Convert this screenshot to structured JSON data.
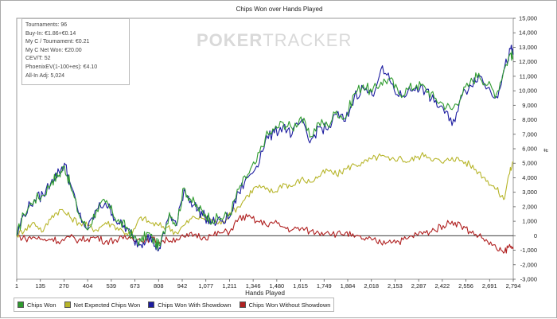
{
  "chart_data": {
    "type": "line",
    "title": "Chips Won over Hands Played",
    "xlabel": "Hands Played",
    "ylabel": "",
    "y_axis_unit": "#",
    "xlim": [
      1,
      2794
    ],
    "ylim": [
      -3000,
      15000
    ],
    "x_ticks": [
      "1",
      "135",
      "270",
      "404",
      "539",
      "673",
      "808",
      "942",
      "1,077",
      "1,211",
      "1,346",
      "1,480",
      "1,615",
      "1,749",
      "1,884",
      "2,018",
      "2,153",
      "2,287",
      "2,422",
      "2,556",
      "2,691",
      "2,794"
    ],
    "y_ticks": [
      "-3,000",
      "-2,000",
      "-1,000",
      "0",
      "1,000",
      "2,000",
      "3,000",
      "4,000",
      "5,000",
      "6,000",
      "7,000",
      "8,000",
      "9,000",
      "10,000",
      "11,000",
      "12,000",
      "13,000",
      "14,000",
      "15,000"
    ],
    "y_tick_values": [
      -3000,
      -2000,
      -1000,
      0,
      1000,
      2000,
      3000,
      4000,
      5000,
      6000,
      7000,
      8000,
      9000,
      10000,
      11000,
      12000,
      13000,
      14000,
      15000
    ],
    "grid": false,
    "legend_position": "bottom",
    "series": [
      {
        "name": "Chips Won",
        "color": "#2e9b2e",
        "x": [
          1,
          40,
          100,
          150,
          200,
          240,
          270,
          300,
          350,
          400,
          450,
          500,
          540,
          580,
          620,
          660,
          700,
          740,
          780,
          808,
          860,
          900,
          942,
          980,
          1020,
          1060,
          1100,
          1150,
          1200,
          1250,
          1300,
          1350,
          1400,
          1450,
          1500,
          1550,
          1600,
          1650,
          1700,
          1750,
          1800,
          1850,
          1900,
          1950,
          2000,
          2050,
          2100,
          2150,
          2200,
          2250,
          2300,
          2350,
          2400,
          2450,
          2500,
          2550,
          2600,
          2650,
          2700,
          2740,
          2780,
          2794
        ],
        "y": [
          0,
          1500,
          2500,
          2800,
          3800,
          4200,
          4800,
          3600,
          1500,
          400,
          1800,
          2300,
          1600,
          900,
          600,
          -200,
          -400,
          200,
          -500,
          -700,
          1600,
          800,
          3300,
          2500,
          1900,
          1500,
          1100,
          1200,
          1500,
          3200,
          4200,
          5100,
          6800,
          7300,
          7800,
          7400,
          8200,
          6800,
          7800,
          7600,
          8600,
          8100,
          9800,
          10400,
          9900,
          10600,
          10800,
          9800,
          10100,
          10400,
          10200,
          9500,
          9100,
          8700,
          9700,
          10500,
          11200,
          10400,
          9800,
          11400,
          12600,
          12200
        ]
      },
      {
        "name": "Net Expected Chips Won",
        "color": "#b7b52a",
        "x": [
          1,
          50,
          100,
          150,
          200,
          250,
          300,
          350,
          400,
          450,
          500,
          550,
          600,
          650,
          700,
          750,
          800,
          850,
          900,
          950,
          1000,
          1050,
          1100,
          1150,
          1200,
          1250,
          1300,
          1350,
          1400,
          1450,
          1500,
          1550,
          1600,
          1650,
          1700,
          1750,
          1800,
          1850,
          1900,
          1950,
          2000,
          2050,
          2100,
          2150,
          2200,
          2250,
          2300,
          2350,
          2400,
          2450,
          2500,
          2550,
          2600,
          2650,
          2700,
          2740,
          2770,
          2794
        ],
        "y": [
          0,
          500,
          900,
          300,
          1400,
          1800,
          1300,
          900,
          700,
          400,
          900,
          700,
          300,
          100,
          1300,
          900,
          700,
          600,
          200,
          800,
          1300,
          1200,
          1100,
          800,
          1600,
          2000,
          2800,
          3400,
          3200,
          3000,
          3600,
          3400,
          3900,
          3700,
          4100,
          4500,
          4200,
          4600,
          4900,
          5000,
          5300,
          5500,
          5200,
          5400,
          5100,
          5400,
          5600,
          5300,
          5000,
          5400,
          5200,
          4900,
          4400,
          3800,
          3200,
          2500,
          4200,
          5100
        ]
      },
      {
        "name": "Chips Won With Showdown",
        "color": "#1c1ca0",
        "x": [
          1,
          40,
          100,
          150,
          200,
          240,
          270,
          300,
          350,
          400,
          450,
          500,
          540,
          580,
          620,
          660,
          700,
          740,
          780,
          808,
          860,
          900,
          942,
          980,
          1020,
          1060,
          1100,
          1150,
          1200,
          1250,
          1300,
          1350,
          1400,
          1450,
          1500,
          1550,
          1600,
          1650,
          1700,
          1750,
          1800,
          1850,
          1900,
          1950,
          2000,
          2050,
          2100,
          2150,
          2200,
          2250,
          2300,
          2350,
          2400,
          2450,
          2500,
          2550,
          2600,
          2650,
          2700,
          2740,
          2780,
          2794
        ],
        "y": [
          0,
          1500,
          2500,
          2800,
          3900,
          4400,
          5000,
          3700,
          1500,
          400,
          1800,
          2300,
          1500,
          800,
          500,
          -300,
          -600,
          100,
          -700,
          -900,
          1500,
          700,
          3200,
          2400,
          1800,
          1300,
          900,
          1000,
          1300,
          3000,
          4000,
          4800,
          6600,
          7100,
          7600,
          7000,
          7900,
          6400,
          7500,
          7300,
          8400,
          7900,
          9600,
          10200,
          9700,
          11500,
          10700,
          9600,
          9900,
          10300,
          10000,
          9200,
          8800,
          7600,
          9500,
          10400,
          11100,
          10200,
          9600,
          11300,
          12900,
          12500
        ]
      },
      {
        "name": "Chips Won Without Showdown",
        "color": "#b02020",
        "x": [
          1,
          50,
          100,
          150,
          200,
          250,
          300,
          350,
          400,
          450,
          500,
          550,
          600,
          650,
          700,
          750,
          800,
          850,
          900,
          950,
          1000,
          1050,
          1100,
          1150,
          1200,
          1250,
          1300,
          1350,
          1400,
          1450,
          1500,
          1550,
          1600,
          1650,
          1700,
          1750,
          1800,
          1850,
          1900,
          1950,
          2000,
          2050,
          2100,
          2150,
          2200,
          2250,
          2300,
          2350,
          2400,
          2450,
          2500,
          2550,
          2600,
          2650,
          2700,
          2740,
          2770,
          2794
        ],
        "y": [
          0,
          -200,
          -100,
          -300,
          -200,
          -400,
          -100,
          -300,
          -200,
          -100,
          -400,
          -300,
          -200,
          -100,
          -300,
          -200,
          -400,
          -300,
          -200,
          -100,
          100,
          -100,
          0,
          200,
          300,
          1200,
          1300,
          1000,
          800,
          900,
          600,
          400,
          500,
          300,
          200,
          300,
          100,
          200,
          -100,
          -200,
          -300,
          -500,
          -300,
          -400,
          -200,
          100,
          200,
          400,
          700,
          1000,
          700,
          300,
          0,
          -400,
          -900,
          -1200,
          -700,
          -900
        ]
      }
    ]
  },
  "stats": {
    "items": [
      "Tournaments: 96",
      "Buy-In: €1.86+€0.14",
      "My C / Tournament: €0.21",
      "My C Net Won: €20.00",
      "CEV/T: 52",
      "PhoenixEV(1-100+es): €4.10",
      "All-In Adj: 5,024"
    ]
  },
  "watermark": {
    "part1": "POKER",
    "part2": "TRACKER"
  },
  "legend": {
    "items": [
      {
        "label": "Chips Won",
        "color": "#2e9b2e"
      },
      {
        "label": "Net Expected Chips Won",
        "color": "#b7b52a"
      },
      {
        "label": "Chips Won With Showdown",
        "color": "#1c1ca0"
      },
      {
        "label": "Chips Won Without Showdown",
        "color": "#b02020"
      }
    ]
  }
}
